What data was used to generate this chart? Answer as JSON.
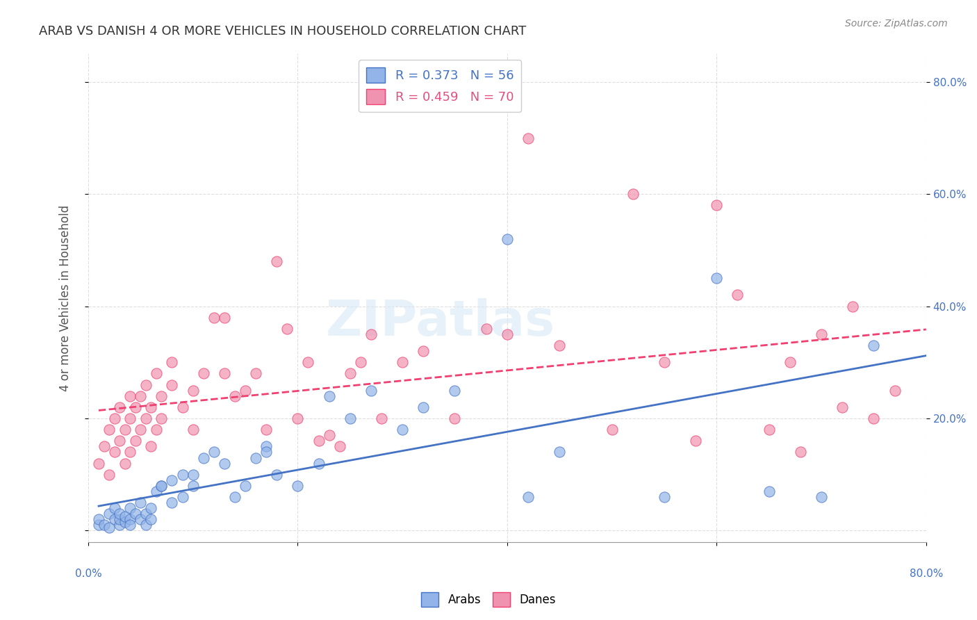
{
  "title": "ARAB VS DANISH 4 OR MORE VEHICLES IN HOUSEHOLD CORRELATION CHART",
  "source": "Source: ZipAtlas.com",
  "ylabel": "4 or more Vehicles in Household",
  "ytick_values": [
    0.0,
    0.2,
    0.4,
    0.6,
    0.8
  ],
  "xlim": [
    0.0,
    0.8
  ],
  "ylim": [
    -0.02,
    0.85
  ],
  "arab_color": "#92b4e8",
  "dane_color": "#f093b0",
  "arab_line_color": "#4472c4",
  "dane_line_color": "#f04070",
  "arab_R": 0.373,
  "arab_N": 56,
  "dane_R": 0.459,
  "dane_N": 70,
  "legend_arab_label": "Arabs",
  "legend_dane_label": "Danes",
  "watermark": "ZIPatlas",
  "arab_scatter_x": [
    0.01,
    0.01,
    0.015,
    0.02,
    0.02,
    0.025,
    0.025,
    0.03,
    0.03,
    0.03,
    0.035,
    0.035,
    0.04,
    0.04,
    0.04,
    0.045,
    0.05,
    0.05,
    0.055,
    0.055,
    0.06,
    0.06,
    0.065,
    0.07,
    0.07,
    0.08,
    0.08,
    0.09,
    0.09,
    0.1,
    0.1,
    0.11,
    0.12,
    0.13,
    0.14,
    0.15,
    0.16,
    0.17,
    0.17,
    0.18,
    0.2,
    0.22,
    0.23,
    0.25,
    0.27,
    0.3,
    0.32,
    0.35,
    0.4,
    0.42,
    0.45,
    0.55,
    0.6,
    0.65,
    0.7,
    0.75
  ],
  "arab_scatter_y": [
    0.01,
    0.02,
    0.01,
    0.03,
    0.005,
    0.02,
    0.04,
    0.01,
    0.02,
    0.03,
    0.015,
    0.025,
    0.02,
    0.04,
    0.01,
    0.03,
    0.02,
    0.05,
    0.01,
    0.03,
    0.02,
    0.04,
    0.07,
    0.08,
    0.08,
    0.09,
    0.05,
    0.1,
    0.06,
    0.1,
    0.08,
    0.13,
    0.14,
    0.12,
    0.06,
    0.08,
    0.13,
    0.15,
    0.14,
    0.1,
    0.08,
    0.12,
    0.24,
    0.2,
    0.25,
    0.18,
    0.22,
    0.25,
    0.52,
    0.06,
    0.14,
    0.06,
    0.45,
    0.07,
    0.06,
    0.33
  ],
  "dane_scatter_x": [
    0.01,
    0.015,
    0.02,
    0.02,
    0.025,
    0.025,
    0.03,
    0.03,
    0.035,
    0.035,
    0.04,
    0.04,
    0.04,
    0.045,
    0.045,
    0.05,
    0.05,
    0.055,
    0.055,
    0.06,
    0.06,
    0.065,
    0.065,
    0.07,
    0.07,
    0.08,
    0.08,
    0.09,
    0.1,
    0.1,
    0.11,
    0.12,
    0.13,
    0.13,
    0.14,
    0.15,
    0.16,
    0.17,
    0.18,
    0.19,
    0.2,
    0.21,
    0.22,
    0.23,
    0.24,
    0.25,
    0.26,
    0.27,
    0.28,
    0.3,
    0.32,
    0.35,
    0.38,
    0.4,
    0.42,
    0.45,
    0.5,
    0.52,
    0.55,
    0.58,
    0.6,
    0.62,
    0.65,
    0.67,
    0.68,
    0.7,
    0.72,
    0.73,
    0.75,
    0.77
  ],
  "dane_scatter_y": [
    0.12,
    0.15,
    0.1,
    0.18,
    0.14,
    0.2,
    0.16,
    0.22,
    0.12,
    0.18,
    0.2,
    0.24,
    0.14,
    0.16,
    0.22,
    0.18,
    0.24,
    0.2,
    0.26,
    0.15,
    0.22,
    0.18,
    0.28,
    0.2,
    0.24,
    0.26,
    0.3,
    0.22,
    0.18,
    0.25,
    0.28,
    0.38,
    0.38,
    0.28,
    0.24,
    0.25,
    0.28,
    0.18,
    0.48,
    0.36,
    0.2,
    0.3,
    0.16,
    0.17,
    0.15,
    0.28,
    0.3,
    0.35,
    0.2,
    0.3,
    0.32,
    0.2,
    0.36,
    0.35,
    0.7,
    0.33,
    0.18,
    0.6,
    0.3,
    0.16,
    0.58,
    0.42,
    0.18,
    0.3,
    0.14,
    0.35,
    0.22,
    0.4,
    0.2,
    0.25
  ]
}
